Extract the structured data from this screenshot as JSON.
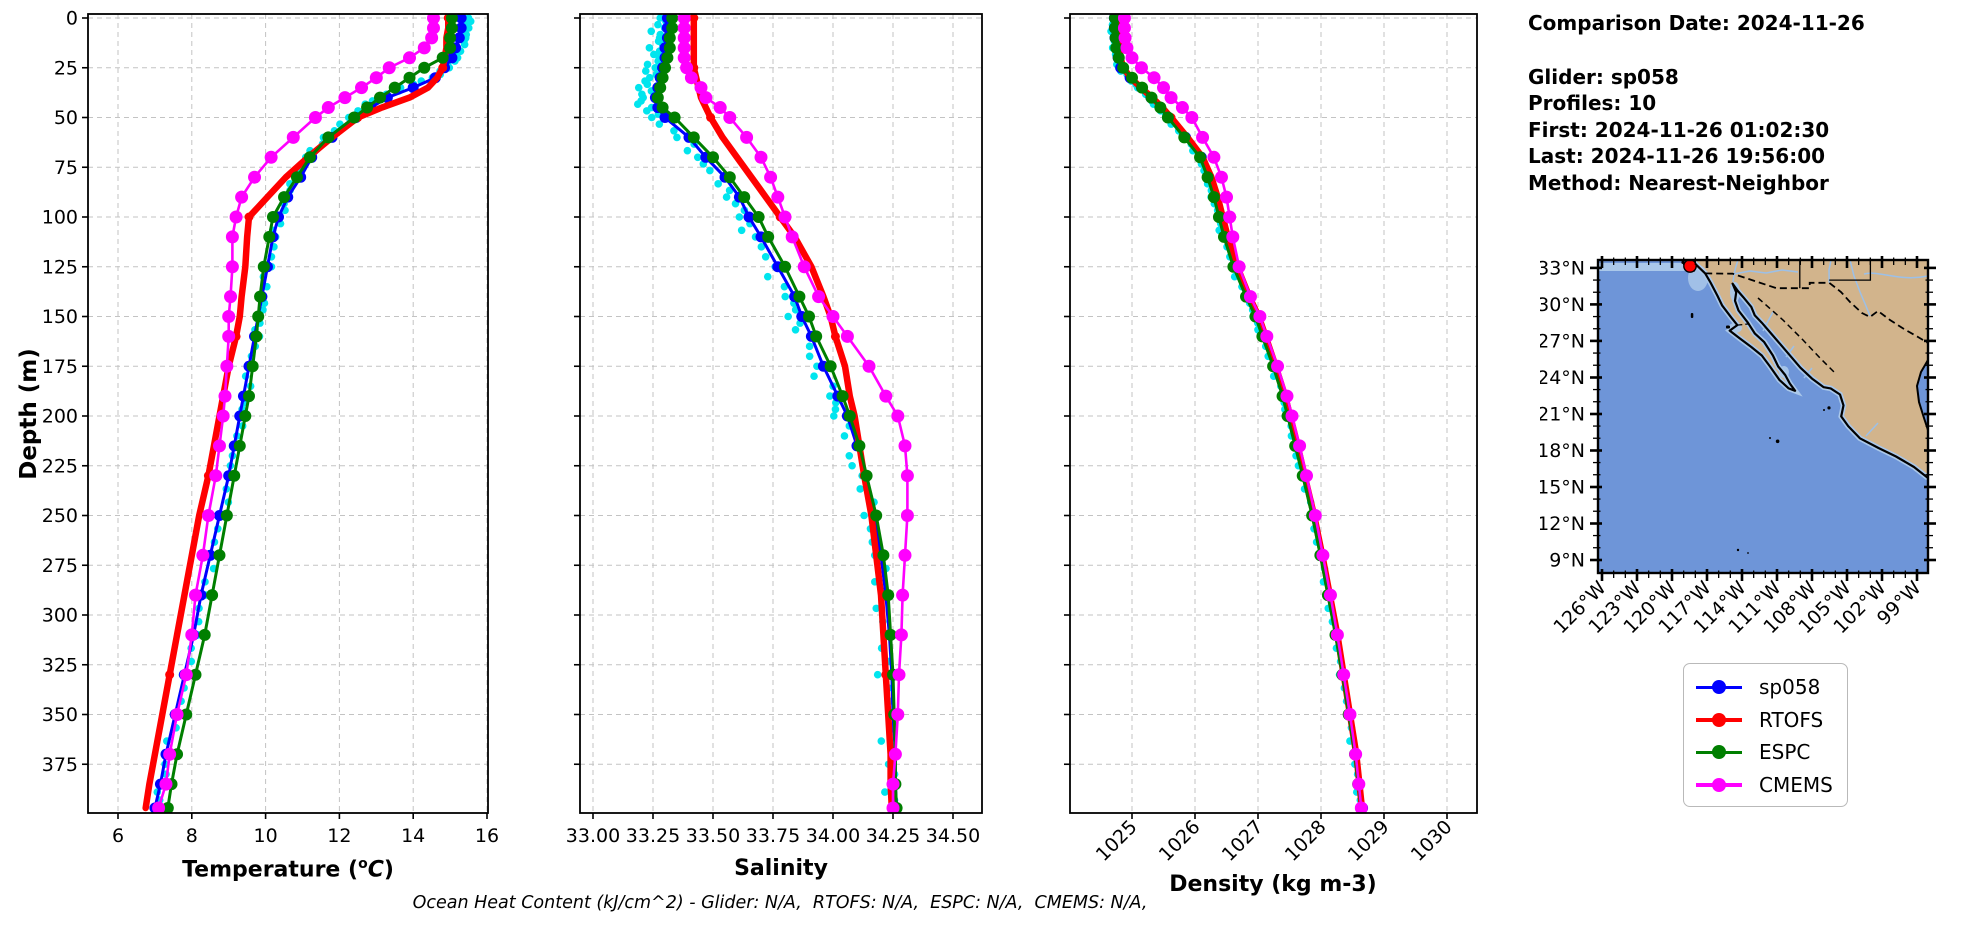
{
  "info_panel": {
    "title": "Comparison Date: 2024-11-26",
    "lines": [
      "Glider: sp058",
      "Profiles: 10",
      "First: 2024-11-26 01:02:30",
      "Last: 2024-11-26 19:56:00",
      "Method: Nearest-Neighbor"
    ]
  },
  "footer": {
    "text": "Ocean Heat Content (kJ/cm^2) - Glider: N/A,  RTOFS: N/A,  ESPC: N/A,  CMEMS: N/A,"
  },
  "legend": {
    "items": [
      {
        "label": "sp058",
        "color": "#0000ff"
      },
      {
        "label": "RTOFS",
        "color": "#ff0000"
      },
      {
        "label": "ESPC",
        "color": "#007f00"
      },
      {
        "label": "CMEMS",
        "color": "#ff00ff"
      }
    ]
  },
  "map": {
    "lat_tick_labels": [
      "33°N",
      "30°N",
      "27°N",
      "24°N",
      "21°N",
      "18°N",
      "15°N",
      "12°N",
      "9°N"
    ],
    "lon_tick_labels": [
      "126°W",
      "123°W",
      "120°W",
      "117°W",
      "114°W",
      "111°W",
      "108°W",
      "105°W",
      "102°W",
      "99°W"
    ],
    "colors": {
      "land": "#d2b48c",
      "ocean": "#6e95d8",
      "shelf": "#aac8ea",
      "river": "#9cc0e8",
      "marker": "#ff0000",
      "coast": "#000000"
    }
  },
  "chart_data": {
    "type": "line",
    "description": "Vertical ocean profiles: glider sp058 vs RTOFS, ESPC, CMEMS models",
    "grid": true,
    "depth_axis": {
      "label": "Depth (m)",
      "ticks": [
        0,
        25,
        50,
        75,
        100,
        125,
        150,
        175,
        200,
        225,
        250,
        275,
        300,
        325,
        350,
        375
      ],
      "range": [
        -2,
        399.5
      ]
    },
    "depth_m": [
      0,
      5,
      10,
      15,
      20,
      25,
      30,
      35,
      40,
      45,
      50,
      60,
      70,
      80,
      90,
      100,
      110,
      125,
      140,
      150,
      160,
      175,
      190,
      200,
      215,
      230,
      250,
      270,
      290,
      310,
      330,
      350,
      370,
      385,
      397
    ],
    "panels": [
      {
        "id": "temperature",
        "xlabel_pre": "Temperature (",
        "xlabel_sup": "o",
        "xlabel_var": "C",
        "xlabel_post": ")",
        "xlim": [
          5.17,
          16.03
        ],
        "xticks": [
          6,
          8,
          10,
          12,
          14,
          16
        ],
        "xtick_labels": [
          "6",
          "8",
          "10",
          "12",
          "14",
          "16"
        ]
      },
      {
        "id": "salinity",
        "xlabel": "Salinity",
        "xlim": [
          32.95,
          34.62
        ],
        "xticks": [
          33.0,
          33.25,
          33.5,
          33.75,
          34.0,
          34.25,
          34.5
        ],
        "xtick_labels": [
          "33.00",
          "33.25",
          "33.50",
          "33.75",
          "34.00",
          "34.25",
          "34.50"
        ]
      },
      {
        "id": "density",
        "xlabel": "Density (kg m-3)",
        "xlim": [
          1024.05,
          1030.48
        ],
        "xticks": [
          1025,
          1026,
          1027,
          1028,
          1029,
          1030
        ],
        "xtick_labels": [
          "1025",
          "1026",
          "1027",
          "1028",
          "1029",
          "1030"
        ],
        "rotate_tick_labels": 45
      }
    ],
    "series": [
      {
        "name": "glider profiles",
        "color": "#00e5ee",
        "style": "scatter",
        "temperature": [
          15.5,
          15.45,
          15.4,
          15.3,
          15.15,
          14.95,
          14.5,
          13.75,
          13.05,
          12.65,
          12.3,
          11.6,
          11.1,
          10.8,
          10.55,
          10.4,
          10.25,
          10.1,
          9.95,
          9.85,
          9.75,
          9.6,
          9.45,
          9.35,
          9.2,
          9.05,
          8.8,
          8.55,
          8.35,
          8.1,
          7.85,
          7.6,
          7.35,
          7.2,
          7.05
        ],
        "salinity": [
          33.28,
          33.28,
          33.27,
          33.27,
          33.26,
          33.25,
          33.23,
          33.22,
          33.2,
          33.22,
          33.26,
          33.36,
          33.44,
          33.52,
          33.58,
          33.62,
          33.67,
          33.74,
          33.81,
          33.84,
          33.88,
          33.93,
          33.99,
          34.03,
          34.07,
          34.11,
          34.15,
          34.18,
          34.2,
          34.21,
          34.22,
          34.23,
          34.24,
          34.24,
          34.25
        ],
        "density": [
          1024.7,
          1024.7,
          1024.71,
          1024.73,
          1024.76,
          1024.8,
          1024.94,
          1025.12,
          1025.27,
          1025.42,
          1025.55,
          1025.82,
          1026.07,
          1026.19,
          1026.28,
          1026.36,
          1026.45,
          1026.6,
          1026.8,
          1026.95,
          1027.06,
          1027.23,
          1027.38,
          1027.46,
          1027.58,
          1027.7,
          1027.85,
          1027.98,
          1028.1,
          1028.22,
          1028.33,
          1028.43,
          1028.53,
          1028.58,
          1028.63
        ]
      },
      {
        "name": "sp058",
        "color": "#0000ff",
        "style": "line-marker",
        "temperature": [
          15.3,
          15.3,
          15.25,
          15.15,
          15.05,
          14.85,
          14.6,
          14.0,
          13.3,
          12.85,
          12.45,
          11.8,
          11.25,
          10.95,
          10.6,
          10.35,
          10.2,
          10.05,
          9.9,
          9.8,
          9.7,
          9.55,
          9.4,
          9.3,
          9.15,
          9.0,
          8.75,
          8.5,
          8.25,
          8.05,
          7.8,
          7.55,
          7.3,
          7.15,
          7.0
        ],
        "salinity": [
          33.31,
          33.31,
          33.31,
          33.3,
          33.3,
          33.29,
          33.28,
          33.27,
          33.26,
          33.27,
          33.3,
          33.4,
          33.47,
          33.55,
          33.61,
          33.65,
          33.7,
          33.77,
          33.84,
          33.87,
          33.91,
          33.96,
          34.02,
          34.06,
          34.1,
          34.14,
          34.17,
          34.2,
          34.22,
          34.235,
          34.245,
          34.25,
          34.26,
          34.26,
          34.265
        ],
        "density": [
          1024.72,
          1024.72,
          1024.73,
          1024.75,
          1024.78,
          1024.82,
          1024.97,
          1025.15,
          1025.3,
          1025.45,
          1025.58,
          1025.85,
          1026.1,
          1026.22,
          1026.31,
          1026.39,
          1026.48,
          1026.63,
          1026.83,
          1026.98,
          1027.09,
          1027.26,
          1027.41,
          1027.49,
          1027.61,
          1027.73,
          1027.88,
          1028.01,
          1028.13,
          1028.25,
          1028.36,
          1028.46,
          1028.56,
          1028.61,
          1028.66
        ]
      },
      {
        "name": "RTOFS",
        "color": "#ff0000",
        "style": "thick-line",
        "temperature": [
          14.95,
          14.95,
          14.9,
          14.9,
          14.85,
          14.8,
          14.65,
          14.4,
          13.9,
          13.15,
          12.5,
          11.8,
          11.15,
          10.55,
          10.05,
          9.55,
          9.5,
          9.45,
          9.35,
          9.3,
          9.2,
          9.0,
          8.85,
          8.75,
          8.6,
          8.45,
          8.2,
          8.0,
          7.8,
          7.6,
          7.4,
          7.2,
          7.0,
          6.85,
          6.75
        ],
        "salinity": [
          33.42,
          33.42,
          33.42,
          33.42,
          33.42,
          33.42,
          33.43,
          33.44,
          33.45,
          33.47,
          33.49,
          33.54,
          33.6,
          33.66,
          33.72,
          33.78,
          33.84,
          33.91,
          33.96,
          33.99,
          34.01,
          34.05,
          34.07,
          34.09,
          34.11,
          34.13,
          34.16,
          34.18,
          34.2,
          34.21,
          34.22,
          34.23,
          34.24,
          34.24,
          34.245
        ],
        "density": [
          1024.78,
          1024.78,
          1024.79,
          1024.8,
          1024.82,
          1024.86,
          1024.98,
          1025.14,
          1025.32,
          1025.48,
          1025.62,
          1025.88,
          1026.12,
          1026.26,
          1026.36,
          1026.44,
          1026.52,
          1026.67,
          1026.86,
          1027.01,
          1027.12,
          1027.28,
          1027.43,
          1027.51,
          1027.63,
          1027.74,
          1027.89,
          1028.02,
          1028.14,
          1028.26,
          1028.36,
          1028.46,
          1028.56,
          1028.61,
          1028.65
        ]
      },
      {
        "name": "ESPC",
        "color": "#007f00",
        "style": "line-marker",
        "temperature": [
          15.05,
          15.05,
          15.0,
          15.0,
          14.8,
          14.3,
          13.9,
          13.5,
          13.1,
          12.75,
          12.4,
          11.7,
          11.2,
          10.85,
          10.5,
          10.2,
          10.1,
          9.95,
          9.85,
          9.8,
          9.75,
          9.65,
          9.55,
          9.45,
          9.3,
          9.15,
          8.95,
          8.75,
          8.55,
          8.35,
          8.1,
          7.85,
          7.6,
          7.45,
          7.35
        ],
        "salinity": [
          33.33,
          33.33,
          33.32,
          33.32,
          33.31,
          33.3,
          33.29,
          33.28,
          33.27,
          33.29,
          33.34,
          33.42,
          33.5,
          33.57,
          33.63,
          33.69,
          33.73,
          33.8,
          33.86,
          33.9,
          33.93,
          33.99,
          34.04,
          34.07,
          34.11,
          34.14,
          34.18,
          34.21,
          34.23,
          34.24,
          34.25,
          34.255,
          34.26,
          34.26,
          34.265
        ],
        "density": [
          1024.73,
          1024.73,
          1024.74,
          1024.75,
          1024.79,
          1024.86,
          1025.0,
          1025.16,
          1025.31,
          1025.45,
          1025.57,
          1025.83,
          1026.08,
          1026.2,
          1026.3,
          1026.38,
          1026.46,
          1026.61,
          1026.81,
          1026.96,
          1027.07,
          1027.24,
          1027.39,
          1027.47,
          1027.59,
          1027.71,
          1027.86,
          1027.99,
          1028.11,
          1028.23,
          1028.34,
          1028.44,
          1028.54,
          1028.59,
          1028.64
        ]
      },
      {
        "name": "CMEMS",
        "color": "#ff00ff",
        "style": "line-marker",
        "temperature": [
          14.55,
          14.55,
          14.5,
          14.3,
          13.9,
          13.35,
          13.0,
          12.6,
          12.15,
          11.7,
          11.35,
          10.75,
          10.15,
          9.7,
          9.35,
          9.2,
          9.1,
          9.1,
          9.05,
          9.0,
          9.0,
          8.95,
          8.9,
          8.85,
          8.75,
          8.65,
          8.45,
          8.3,
          8.1,
          8.0,
          7.85,
          7.6,
          7.4,
          7.3,
          7.1
        ],
        "salinity": [
          33.38,
          33.38,
          33.38,
          33.38,
          33.38,
          33.39,
          33.41,
          33.45,
          33.47,
          33.53,
          33.57,
          33.64,
          33.7,
          33.74,
          33.77,
          33.8,
          33.83,
          33.88,
          33.94,
          34.0,
          34.06,
          34.15,
          34.22,
          34.27,
          34.3,
          34.31,
          34.31,
          34.3,
          34.29,
          34.285,
          34.275,
          34.27,
          34.26,
          34.25,
          34.25
        ],
        "density": [
          1024.88,
          1024.88,
          1024.89,
          1024.92,
          1025.0,
          1025.15,
          1025.35,
          1025.5,
          1025.62,
          1025.8,
          1025.95,
          1026.12,
          1026.3,
          1026.42,
          1026.5,
          1026.55,
          1026.6,
          1026.7,
          1026.88,
          1027.03,
          1027.14,
          1027.31,
          1027.46,
          1027.54,
          1027.66,
          1027.77,
          1027.91,
          1028.03,
          1028.15,
          1028.26,
          1028.36,
          1028.46,
          1028.55,
          1028.6,
          1028.64
        ]
      }
    ]
  }
}
